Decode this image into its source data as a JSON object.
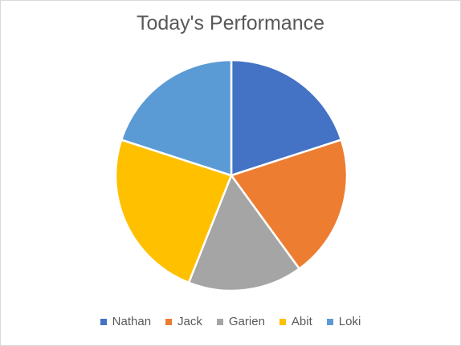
{
  "chart_data": {
    "type": "pie",
    "title": "Today's Performance",
    "categories": [
      "Nathan",
      "Jack",
      "Garien",
      "Abit",
      "Loki"
    ],
    "values": [
      20,
      20,
      16,
      24,
      20
    ],
    "colors": [
      "#4472c4",
      "#ed7d31",
      "#a5a5a5",
      "#ffc000",
      "#5b9bd5"
    ],
    "legend_position": "bottom",
    "start_angle_deg": 0,
    "direction": "clockwise"
  }
}
